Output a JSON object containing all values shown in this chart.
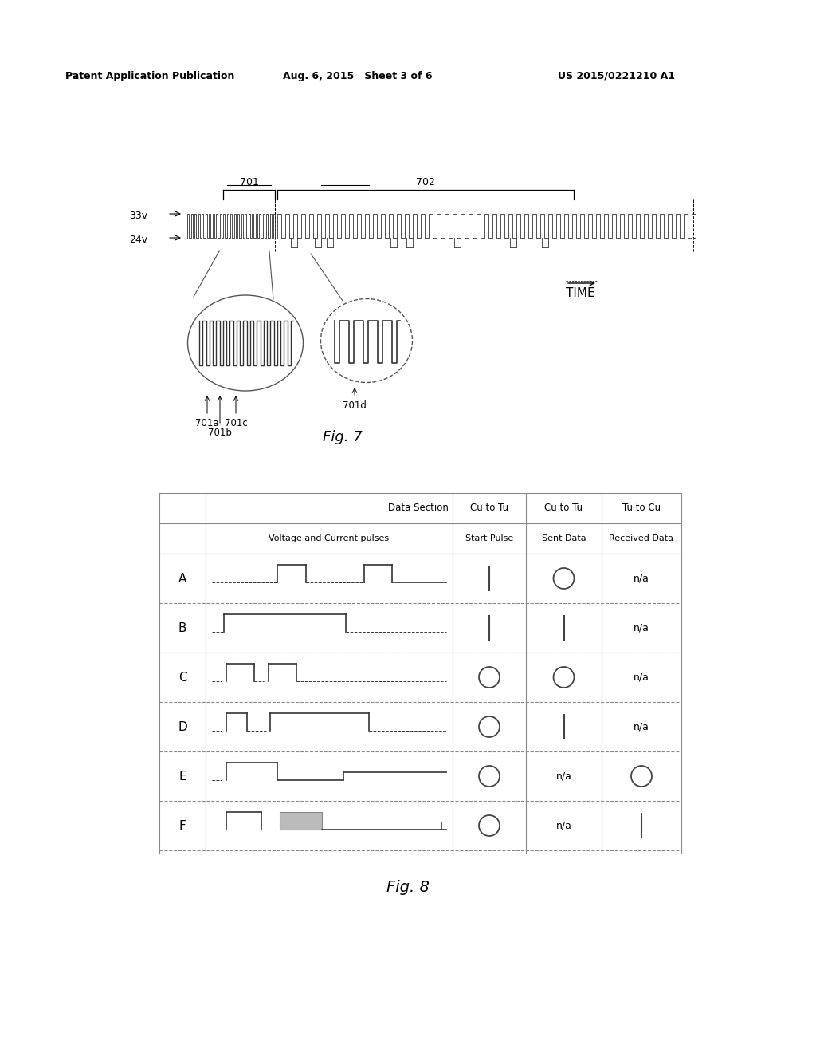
{
  "header_left": "Patent Application Publication",
  "header_mid": "Aug. 6, 2015   Sheet 3 of 6",
  "header_right": "US 2015/0221210 A1",
  "fig7_label": "Fig. 7",
  "fig8_label": "Fig. 8",
  "voltage_33": "33v",
  "voltage_24": "24v",
  "time_label": "TIME",
  "label_701": "701",
  "label_702": "702",
  "label_701a": "701a",
  "label_701b": "701b",
  "label_701c": "701c",
  "label_701d": "701d",
  "table_rows": [
    "A",
    "B",
    "C",
    "D",
    "E",
    "F"
  ],
  "table_start_pulse": [
    "line",
    "line",
    "circle",
    "circle",
    "circle",
    "circle"
  ],
  "table_sent_data": [
    "circle",
    "line",
    "circle",
    "line",
    "na",
    "na"
  ],
  "table_received_data": [
    "na",
    "na",
    "na",
    "na",
    "circle",
    "line"
  ],
  "bg_color": "#ffffff"
}
